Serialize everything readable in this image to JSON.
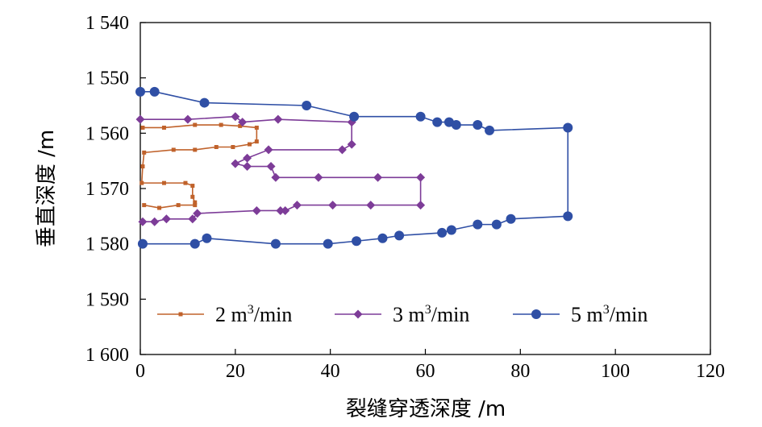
{
  "chart_data": {
    "type": "line",
    "xlabel": "裂缝穿透深度 /m",
    "ylabel": "垂直深度 /m",
    "xlim": [
      0,
      120
    ],
    "ylim": [
      1540,
      1600
    ],
    "y_inverted": true,
    "x_ticks": [
      0,
      20,
      40,
      60,
      80,
      100,
      120
    ],
    "x_tick_labels": [
      "0",
      "20",
      "40",
      "60",
      "80",
      "100",
      "120"
    ],
    "y_ticks": [
      1540,
      1550,
      1560,
      1570,
      1580,
      1590,
      1600
    ],
    "y_tick_labels": [
      "1 540",
      "1 550",
      "1 560",
      "1 570",
      "1 580",
      "1 590",
      "1 600"
    ],
    "grid": false,
    "legend_position": "bottom",
    "series": [
      {
        "name": "2 m³/min",
        "label_base": "2 m",
        "label_sup": "3",
        "label_tail": "/min",
        "color": "#c0622b",
        "marker": "square",
        "points": [
          [
            0.5,
            1559
          ],
          [
            5,
            1559
          ],
          [
            11.5,
            1558.5
          ],
          [
            17,
            1558.5
          ],
          [
            21,
            1558.7
          ],
          [
            24.5,
            1559
          ],
          [
            24.5,
            1561.5
          ],
          [
            23,
            1562
          ],
          [
            19.5,
            1562.5
          ],
          [
            16,
            1562.5
          ],
          [
            11.5,
            1563
          ],
          [
            7,
            1563
          ],
          [
            0.8,
            1563.5
          ],
          [
            0.5,
            1566
          ],
          [
            0.3,
            1569
          ],
          [
            5,
            1569
          ],
          [
            9.5,
            1569
          ],
          [
            11,
            1569.5
          ],
          [
            11,
            1571.5
          ],
          [
            11.5,
            1572.5
          ],
          [
            11.5,
            1573
          ],
          [
            8,
            1573
          ],
          [
            4,
            1573.5
          ],
          [
            0.8,
            1573
          ]
        ]
      },
      {
        "name": "3 m³/min",
        "label_base": "3 m",
        "label_sup": "3",
        "label_tail": "/min",
        "color": "#7d3c98",
        "marker": "diamond",
        "points": [
          [
            0,
            1557.5
          ],
          [
            10,
            1557.5
          ],
          [
            20,
            1557
          ],
          [
            21.5,
            1558
          ],
          [
            29,
            1557.5
          ],
          [
            44.5,
            1558
          ],
          [
            44.5,
            1562
          ],
          [
            42.5,
            1563
          ],
          [
            27,
            1563
          ],
          [
            22.5,
            1564.5
          ],
          [
            20,
            1565.5
          ],
          [
            22.5,
            1566
          ],
          [
            27.5,
            1566
          ],
          [
            28.5,
            1568
          ],
          [
            37.5,
            1568
          ],
          [
            50,
            1568
          ],
          [
            59,
            1568
          ],
          [
            59,
            1573
          ],
          [
            48.5,
            1573
          ],
          [
            40.5,
            1573
          ],
          [
            33,
            1573
          ],
          [
            30.5,
            1574
          ],
          [
            29.5,
            1574
          ],
          [
            24.5,
            1574
          ],
          [
            12,
            1574.5
          ],
          [
            11,
            1575.5
          ],
          [
            5.5,
            1575.5
          ],
          [
            3,
            1576
          ],
          [
            0.5,
            1576
          ]
        ]
      },
      {
        "name": "5 m³/min",
        "label_base": "5 m",
        "label_sup": "3",
        "label_tail": "/min",
        "color": "#2f4fa5",
        "marker": "circle",
        "points": [
          [
            0,
            1552.5
          ],
          [
            3,
            1552.5
          ],
          [
            13.5,
            1554.5
          ],
          [
            35,
            1555
          ],
          [
            45,
            1557
          ],
          [
            59,
            1557
          ],
          [
            62.5,
            1558
          ],
          [
            65,
            1558
          ],
          [
            66.5,
            1558.5
          ],
          [
            71,
            1558.5
          ],
          [
            73.5,
            1559.5
          ],
          [
            90,
            1559
          ],
          [
            90,
            1575
          ],
          [
            78,
            1575.5
          ],
          [
            75,
            1576.5
          ],
          [
            71,
            1576.5
          ],
          [
            65.5,
            1577.5
          ],
          [
            63.5,
            1578
          ],
          [
            54.5,
            1578.5
          ],
          [
            51,
            1579
          ],
          [
            45.5,
            1579.5
          ],
          [
            39.5,
            1580
          ],
          [
            28.5,
            1580
          ],
          [
            14,
            1579
          ],
          [
            11.5,
            1580
          ],
          [
            0.5,
            1580
          ]
        ]
      }
    ]
  }
}
